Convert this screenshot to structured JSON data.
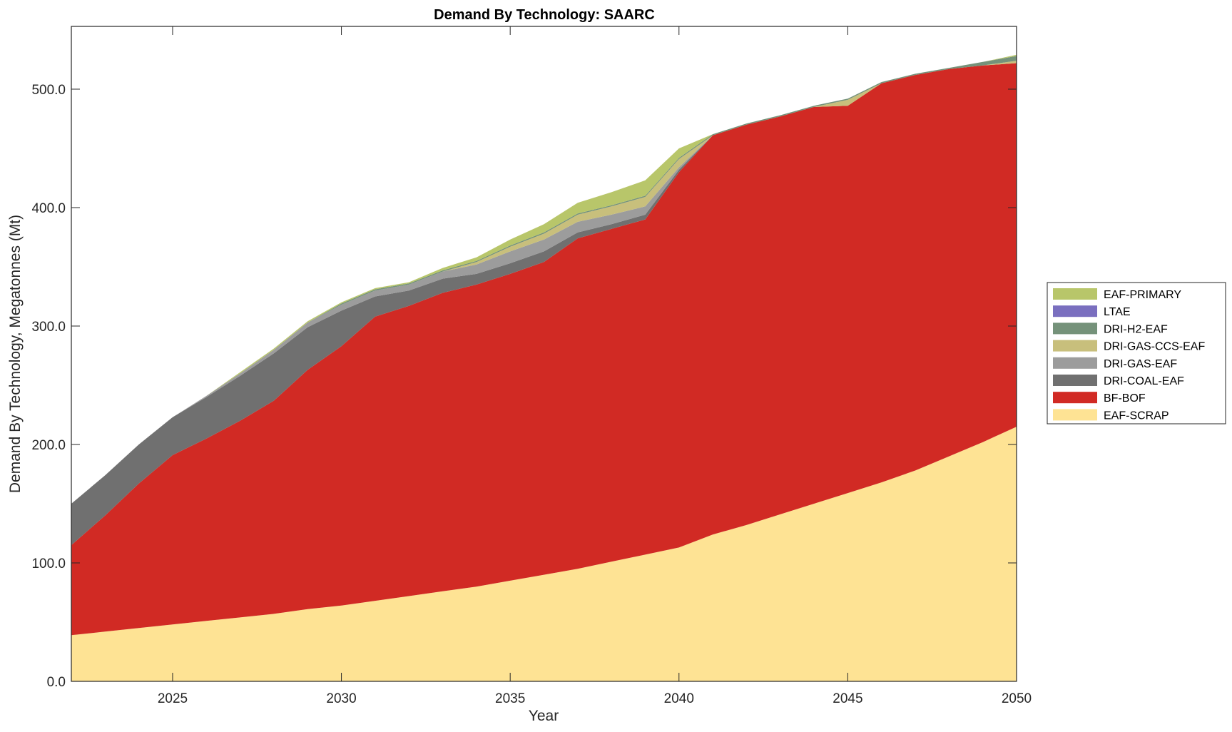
{
  "chart_data": {
    "type": "area",
    "stacked": true,
    "title": "Demand By Technology: SAARC",
    "xlabel": "Year",
    "ylabel": "Demand By Technology, Megatonnes (Mt)",
    "xlim": [
      2022,
      2050
    ],
    "ylim": [
      0,
      553
    ],
    "x_ticks": [
      2025,
      2030,
      2035,
      2040,
      2045,
      2050
    ],
    "y_ticks": [
      0,
      100,
      200,
      300,
      400,
      500
    ],
    "y_tick_labels": [
      "0.0",
      "100.0",
      "200.0",
      "300.0",
      "400.0",
      "500.0"
    ],
    "grid": false,
    "legend_position": "right",
    "x": [
      2022,
      2023,
      2024,
      2025,
      2026,
      2027,
      2028,
      2029,
      2030,
      2031,
      2032,
      2033,
      2034,
      2035,
      2036,
      2037,
      2038,
      2039,
      2040,
      2041,
      2042,
      2043,
      2044,
      2045,
      2046,
      2047,
      2048,
      2049,
      2050
    ],
    "series": [
      {
        "name": "EAF-SCRAP",
        "color": "#fee394",
        "values": [
          39,
          42,
          45,
          48,
          51,
          54,
          57,
          61,
          64,
          68,
          72,
          76,
          80,
          85,
          90,
          95,
          101,
          107,
          113,
          124,
          132,
          141,
          150,
          159,
          168,
          178,
          190,
          202,
          215
        ]
      },
      {
        "name": "BF-BOF",
        "color": "#d12a24",
        "values": [
          76,
          98,
          122,
          143,
          154,
          166,
          180,
          202,
          219,
          240,
          245,
          252,
          255,
          259,
          264,
          279,
          281,
          283,
          317,
          337,
          338,
          336,
          335,
          327,
          337,
          334,
          327,
          318,
          307
        ]
      },
      {
        "name": "DRI-COAL-EAF",
        "color": "#707070",
        "values": [
          35,
          34,
          33,
          32,
          35,
          38,
          40,
          36,
          30,
          17,
          13,
          12,
          9,
          9,
          9,
          5,
          4,
          4,
          2,
          0,
          0,
          0,
          0,
          0,
          0,
          0,
          0,
          0,
          0
        ]
      },
      {
        "name": "DRI-GAS-EAF",
        "color": "#9c9c9c",
        "values": [
          0,
          0,
          0,
          0,
          1,
          2,
          3,
          4,
          5,
          5,
          5,
          6,
          8,
          10,
          10,
          9,
          8,
          7,
          2,
          0,
          0,
          0,
          0,
          0,
          0,
          0,
          0,
          0,
          0
        ]
      },
      {
        "name": "DRI-GAS-CCS-EAF",
        "color": "#c8bf7c",
        "values": [
          0,
          0,
          0,
          0,
          0,
          0,
          0,
          0,
          0,
          0,
          0,
          0,
          2,
          4,
          5,
          6,
          7,
          8,
          7,
          0,
          0,
          0,
          0,
          5,
          0,
          0,
          0,
          0,
          2
        ]
      },
      {
        "name": "DRI-H2-EAF",
        "color": "#75927a",
        "values": [
          0,
          0,
          0,
          0,
          0,
          0,
          0,
          0,
          1,
          1,
          1,
          1,
          1,
          1,
          1,
          1,
          1,
          1,
          1,
          1,
          1,
          1,
          1,
          1,
          1,
          1,
          1,
          3,
          4
        ]
      },
      {
        "name": "LTAE",
        "color": "#7a6fbf",
        "values": [
          0,
          0,
          0,
          0,
          0,
          0,
          0,
          0,
          0,
          0,
          0,
          0,
          0,
          0,
          0,
          0,
          0,
          0,
          0,
          0,
          0,
          0,
          0,
          0,
          0,
          0,
          0,
          0,
          0
        ]
      },
      {
        "name": "EAF-PRIMARY",
        "color": "#b8c66a",
        "values": [
          0,
          0,
          0,
          0,
          0,
          1,
          1,
          1,
          1,
          1,
          1,
          2,
          3,
          5,
          7,
          9,
          11,
          13,
          8,
          0,
          0,
          0,
          0,
          0,
          0,
          0,
          0,
          0,
          1
        ]
      }
    ]
  }
}
